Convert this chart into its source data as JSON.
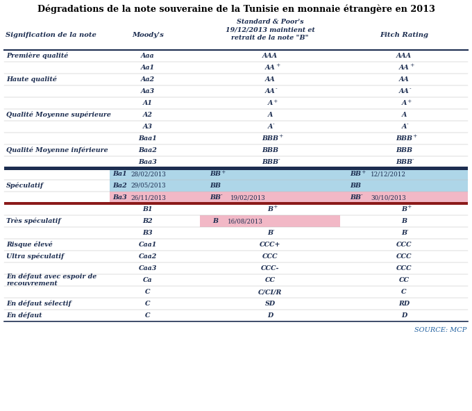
{
  "title": "Dégradations de la note souveraine de la Tunisie en monnaie étrangère en 2013",
  "rows": [
    {
      "signif": "Première qualité",
      "moodys": "Aaa",
      "sp": "AAA",
      "sp_sup": "",
      "sp_date": "",
      "sp_date2": "",
      "fitch": "AAA",
      "fitch_sup": "",
      "fitch_date": "",
      "moody_bg": null,
      "sp_bg": null,
      "fitch_bg": null,
      "heavy_top": true,
      "heavy_bot": false
    },
    {
      "signif": "",
      "moodys": "Aa1",
      "sp": "AA",
      "sp_sup": "+",
      "sp_date": "",
      "sp_date2": "",
      "fitch": "AA",
      "fitch_sup": "+",
      "fitch_date": "",
      "moody_bg": null,
      "sp_bg": null,
      "fitch_bg": null,
      "heavy_top": false,
      "heavy_bot": false
    },
    {
      "signif": "Haute qualité",
      "moodys": "Aa2",
      "sp": "AA",
      "sp_sup": "",
      "sp_date": "",
      "sp_date2": "",
      "fitch": "AA",
      "fitch_sup": "",
      "fitch_date": "",
      "moody_bg": null,
      "sp_bg": null,
      "fitch_bg": null,
      "heavy_top": false,
      "heavy_bot": false
    },
    {
      "signif": "",
      "moodys": "Aa3",
      "sp": "AA",
      "sp_sup": "-",
      "sp_date": "",
      "sp_date2": "",
      "fitch": "AA",
      "fitch_sup": "-",
      "fitch_date": "",
      "moody_bg": null,
      "sp_bg": null,
      "fitch_bg": null,
      "heavy_top": false,
      "heavy_bot": false
    },
    {
      "signif": "",
      "moodys": "A1",
      "sp": "A",
      "sp_sup": "+",
      "sp_date": "",
      "sp_date2": "",
      "fitch": "A",
      "fitch_sup": "+",
      "fitch_date": "",
      "moody_bg": null,
      "sp_bg": null,
      "fitch_bg": null,
      "heavy_top": false,
      "heavy_bot": false
    },
    {
      "signif": "Qualité Moyenne supérieure",
      "moodys": "A2",
      "sp": "A",
      "sp_sup": "",
      "sp_date": "",
      "sp_date2": "",
      "fitch": "A",
      "fitch_sup": "",
      "fitch_date": "",
      "moody_bg": null,
      "sp_bg": null,
      "fitch_bg": null,
      "heavy_top": false,
      "heavy_bot": false
    },
    {
      "signif": "",
      "moodys": "A3",
      "sp": "A",
      "sp_sup": "-",
      "sp_date": "",
      "sp_date2": "",
      "fitch": "A",
      "fitch_sup": "-",
      "fitch_date": "",
      "moody_bg": null,
      "sp_bg": null,
      "fitch_bg": null,
      "heavy_top": false,
      "heavy_bot": false
    },
    {
      "signif": "",
      "moodys": "Baa1",
      "sp": "BBB",
      "sp_sup": "+",
      "sp_date": "",
      "sp_date2": "",
      "fitch": "BBB",
      "fitch_sup": "+",
      "fitch_date": "",
      "moody_bg": null,
      "sp_bg": null,
      "fitch_bg": null,
      "heavy_top": false,
      "heavy_bot": false
    },
    {
      "signif": "Qualité Moyenne inférieure",
      "moodys": "Baa2",
      "sp": "BBB",
      "sp_sup": "",
      "sp_date": "",
      "sp_date2": "",
      "fitch": "BBB",
      "fitch_sup": "",
      "fitch_date": "",
      "moody_bg": null,
      "sp_bg": null,
      "fitch_bg": null,
      "heavy_top": false,
      "heavy_bot": false
    },
    {
      "signif": "",
      "moodys": "Baa3",
      "sp": "BBB",
      "sp_sup": "-",
      "sp_date": "",
      "sp_date2": "",
      "fitch": "BBB",
      "fitch_sup": "-",
      "fitch_date": "",
      "moody_bg": null,
      "sp_bg": null,
      "fitch_bg": null,
      "heavy_top": false,
      "heavy_bot": false
    },
    {
      "signif": "",
      "moodys": "Ba1",
      "sp": "BB",
      "sp_sup": "+",
      "sp_date": "28/02/2013",
      "sp_date2": "",
      "fitch": "BB",
      "fitch_sup": "+",
      "fitch_date": "12/12/2012",
      "moody_bg": "light_blue",
      "sp_bg": "light_blue",
      "fitch_bg": "light_blue",
      "heavy_top": false,
      "heavy_bot": false
    },
    {
      "signif": "Spéculatif",
      "moodys": "Ba2",
      "sp": "BB",
      "sp_sup": "",
      "sp_date": "29/05/2013",
      "sp_date2": "",
      "fitch": "BB",
      "fitch_sup": "",
      "fitch_date": "",
      "moody_bg": "light_blue",
      "sp_bg": "light_blue",
      "fitch_bg": "light_blue",
      "heavy_top": false,
      "heavy_bot": false
    },
    {
      "signif": "",
      "moodys": "Ba3",
      "sp": "BB",
      "sp_sup": "-",
      "sp_date": "26/11/2013",
      "sp_date2": "19/02/2013",
      "fitch": "BB",
      "fitch_sup": "-",
      "fitch_date": "30/10/2013",
      "moody_bg": "light_pink",
      "sp_bg": "light_pink",
      "fitch_bg": "light_pink",
      "heavy_top": false,
      "heavy_bot": false
    },
    {
      "signif": "",
      "moodys": "B1",
      "sp": "B",
      "sp_sup": "+",
      "sp_date": "",
      "sp_date2": "",
      "fitch": "B",
      "fitch_sup": "+",
      "fitch_date": "",
      "moody_bg": null,
      "sp_bg": null,
      "fitch_bg": null,
      "heavy_top": false,
      "heavy_bot": false
    },
    {
      "signif": "Très spéculatif",
      "moodys": "B2",
      "sp": "B",
      "sp_sup": "",
      "sp_date": "16/08/2013",
      "sp_date2": "",
      "fitch": "B",
      "fitch_sup": "",
      "fitch_date": "",
      "moody_bg": null,
      "sp_bg": "light_pink",
      "fitch_bg": null,
      "heavy_top": false,
      "heavy_bot": false
    },
    {
      "signif": "",
      "moodys": "B3",
      "sp": "B",
      "sp_sup": "-",
      "sp_date": "",
      "sp_date2": "",
      "fitch": "B",
      "fitch_sup": "-",
      "fitch_date": "",
      "moody_bg": null,
      "sp_bg": null,
      "fitch_bg": null,
      "heavy_top": false,
      "heavy_bot": false
    },
    {
      "signif": "Risque élevé",
      "moodys": "Caa1",
      "sp": "CCC+",
      "sp_sup": "",
      "sp_date": "",
      "sp_date2": "",
      "fitch": "CCC",
      "fitch_sup": "",
      "fitch_date": "",
      "moody_bg": null,
      "sp_bg": null,
      "fitch_bg": null,
      "heavy_top": false,
      "heavy_bot": false
    },
    {
      "signif": "Ultra spéculatif",
      "moodys": "Caa2",
      "sp": "CCC",
      "sp_sup": "",
      "sp_date": "",
      "sp_date2": "",
      "fitch": "CCC",
      "fitch_sup": "",
      "fitch_date": "",
      "moody_bg": null,
      "sp_bg": null,
      "fitch_bg": null,
      "heavy_top": false,
      "heavy_bot": false
    },
    {
      "signif": "",
      "moodys": "Caa3",
      "sp": "CCC-",
      "sp_sup": "",
      "sp_date": "",
      "sp_date2": "",
      "fitch": "CCC",
      "fitch_sup": "",
      "fitch_date": "",
      "moody_bg": null,
      "sp_bg": null,
      "fitch_bg": null,
      "heavy_top": false,
      "heavy_bot": false
    },
    {
      "signif": "En défaut avec espoir de\nrecouvrement",
      "moodys": "Ca",
      "sp": "CC",
      "sp_sup": "",
      "sp_date": "",
      "sp_date2": "",
      "fitch": "CC",
      "fitch_sup": "",
      "fitch_date": "",
      "moody_bg": null,
      "sp_bg": null,
      "fitch_bg": null,
      "heavy_top": false,
      "heavy_bot": false
    },
    {
      "signif": "",
      "moodys": "C",
      "sp": "C/CI/R",
      "sp_sup": "",
      "sp_date": "",
      "sp_date2": "",
      "fitch": "C",
      "fitch_sup": "",
      "fitch_date": "",
      "moody_bg": null,
      "sp_bg": null,
      "fitch_bg": null,
      "heavy_top": false,
      "heavy_bot": false
    },
    {
      "signif": "En défaut sélectif",
      "moodys": "C",
      "sp": "SD",
      "sp_sup": "",
      "sp_date": "",
      "sp_date2": "",
      "fitch": "RD",
      "fitch_sup": "",
      "fitch_date": "",
      "moody_bg": null,
      "sp_bg": null,
      "fitch_bg": null,
      "heavy_top": false,
      "heavy_bot": false
    },
    {
      "signif": "En défaut",
      "moodys": "C",
      "sp": "D",
      "sp_sup": "",
      "sp_date": "",
      "sp_date2": "",
      "fitch": "D",
      "fitch_sup": "",
      "fitch_date": "",
      "moody_bg": null,
      "sp_bg": null,
      "fitch_bg": null,
      "heavy_top": false,
      "heavy_bot": true
    }
  ],
  "colors": {
    "light_blue": "#aed6e8",
    "light_pink": "#f2b8c6",
    "dark_navy": "#1c2d50",
    "dark_red": "#8b1a1a",
    "text_color": "#1c2d50",
    "title_color": "#000000",
    "source_color": "#2060a0",
    "line_light": "#bbbbbb",
    "line_heavy": "#1c2d50"
  },
  "navy_after_row": 9,
  "red_after_row": 12
}
